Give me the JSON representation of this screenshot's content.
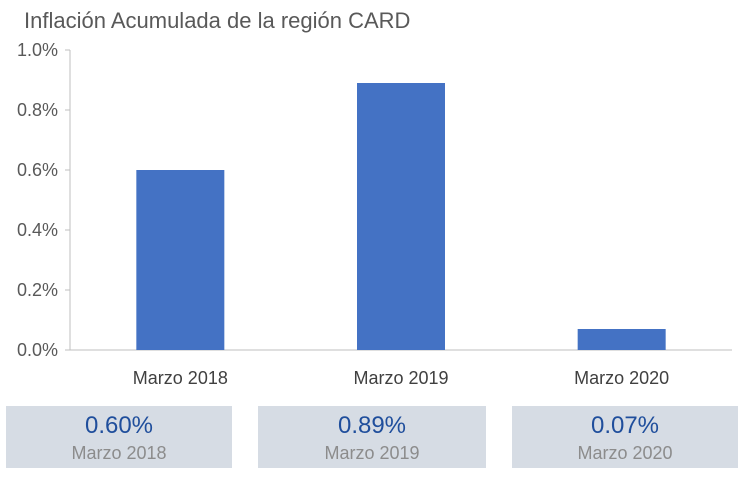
{
  "chart_data": {
    "type": "bar",
    "title": "Inflación Acumulada de la región CARD",
    "categories": [
      "Marzo 2018",
      "Marzo 2019",
      "Marzo 2020"
    ],
    "values": [
      0.6,
      0.89,
      0.07
    ],
    "ylim": [
      0,
      1.0
    ],
    "yticks": [
      "0.0%",
      "0.2%",
      "0.4%",
      "0.6%",
      "0.8%",
      "1.0%"
    ],
    "xlabel": "",
    "ylabel": "",
    "grid": false,
    "bar_color": "#4472c4"
  },
  "cards": [
    {
      "value": "0.60%",
      "label": "Marzo 2018"
    },
    {
      "value": "0.89%",
      "label": "Marzo 2019"
    },
    {
      "value": "0.07%",
      "label": "Marzo 2020"
    }
  ]
}
